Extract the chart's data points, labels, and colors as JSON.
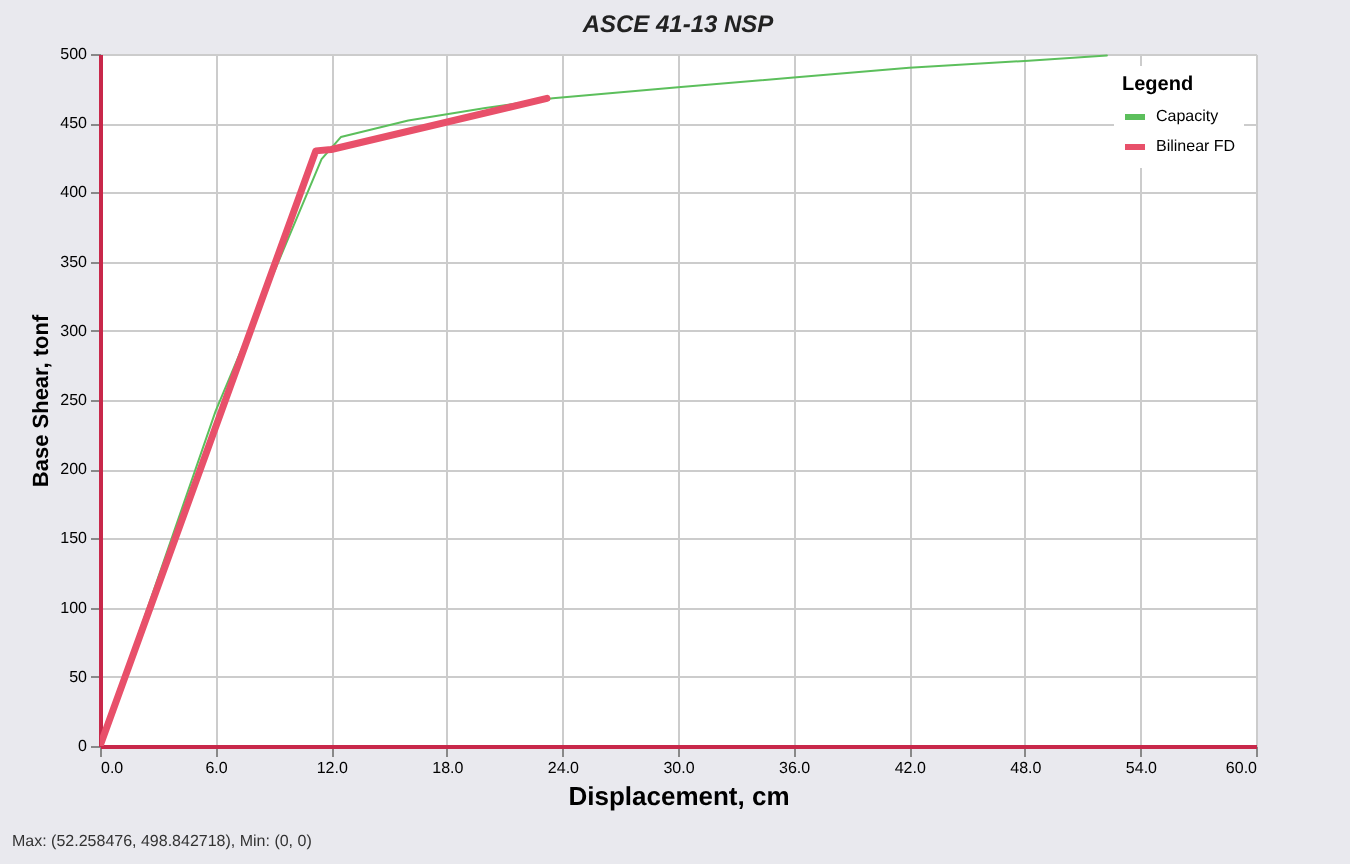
{
  "chart_data": {
    "type": "line",
    "title": "ASCE 41-13 NSP",
    "xlabel": "Displacement, cm",
    "ylabel": "Base Shear, tonf",
    "legend_title": "Legend",
    "legend": "top right",
    "grid": true,
    "xlim": [
      0,
      60
    ],
    "xticks": [
      {
        "value": 0,
        "label": "0.0"
      },
      {
        "value": 6,
        "label": "6.0"
      },
      {
        "value": 12,
        "label": "12.0"
      },
      {
        "value": 18,
        "label": "18.0"
      },
      {
        "value": 24,
        "label": "24.0"
      },
      {
        "value": 30,
        "label": "30.0"
      },
      {
        "value": 36,
        "label": "36.0"
      },
      {
        "value": 42,
        "label": "42.0"
      },
      {
        "value": 48,
        "label": "48.0"
      },
      {
        "value": 54,
        "label": "54.0"
      },
      {
        "value": 60,
        "label": "60.0"
      }
    ],
    "ylim": [
      0,
      500
    ],
    "yticks": [
      0,
      50,
      100,
      150,
      200,
      250,
      300,
      350,
      400,
      450,
      500
    ],
    "series": [
      {
        "name": "Capacity",
        "color": "#5cbf5c",
        "x": [
          0,
          6,
          11.5,
          12.5,
          16,
          20,
          23.5,
          30,
          36,
          42,
          48,
          52.26
        ],
        "values": [
          0,
          242,
          424,
          440,
          452,
          461,
          468,
          476,
          483,
          490,
          495,
          499
        ]
      },
      {
        "name": "Bilinear FD",
        "color": "#e8506a",
        "x": [
          0,
          11.2,
          12,
          23.2
        ],
        "values": [
          0,
          430,
          431,
          468
        ]
      }
    ],
    "annotations": [
      "Max: (52.258476, 498.842718),   Min: (0, 0)"
    ]
  }
}
